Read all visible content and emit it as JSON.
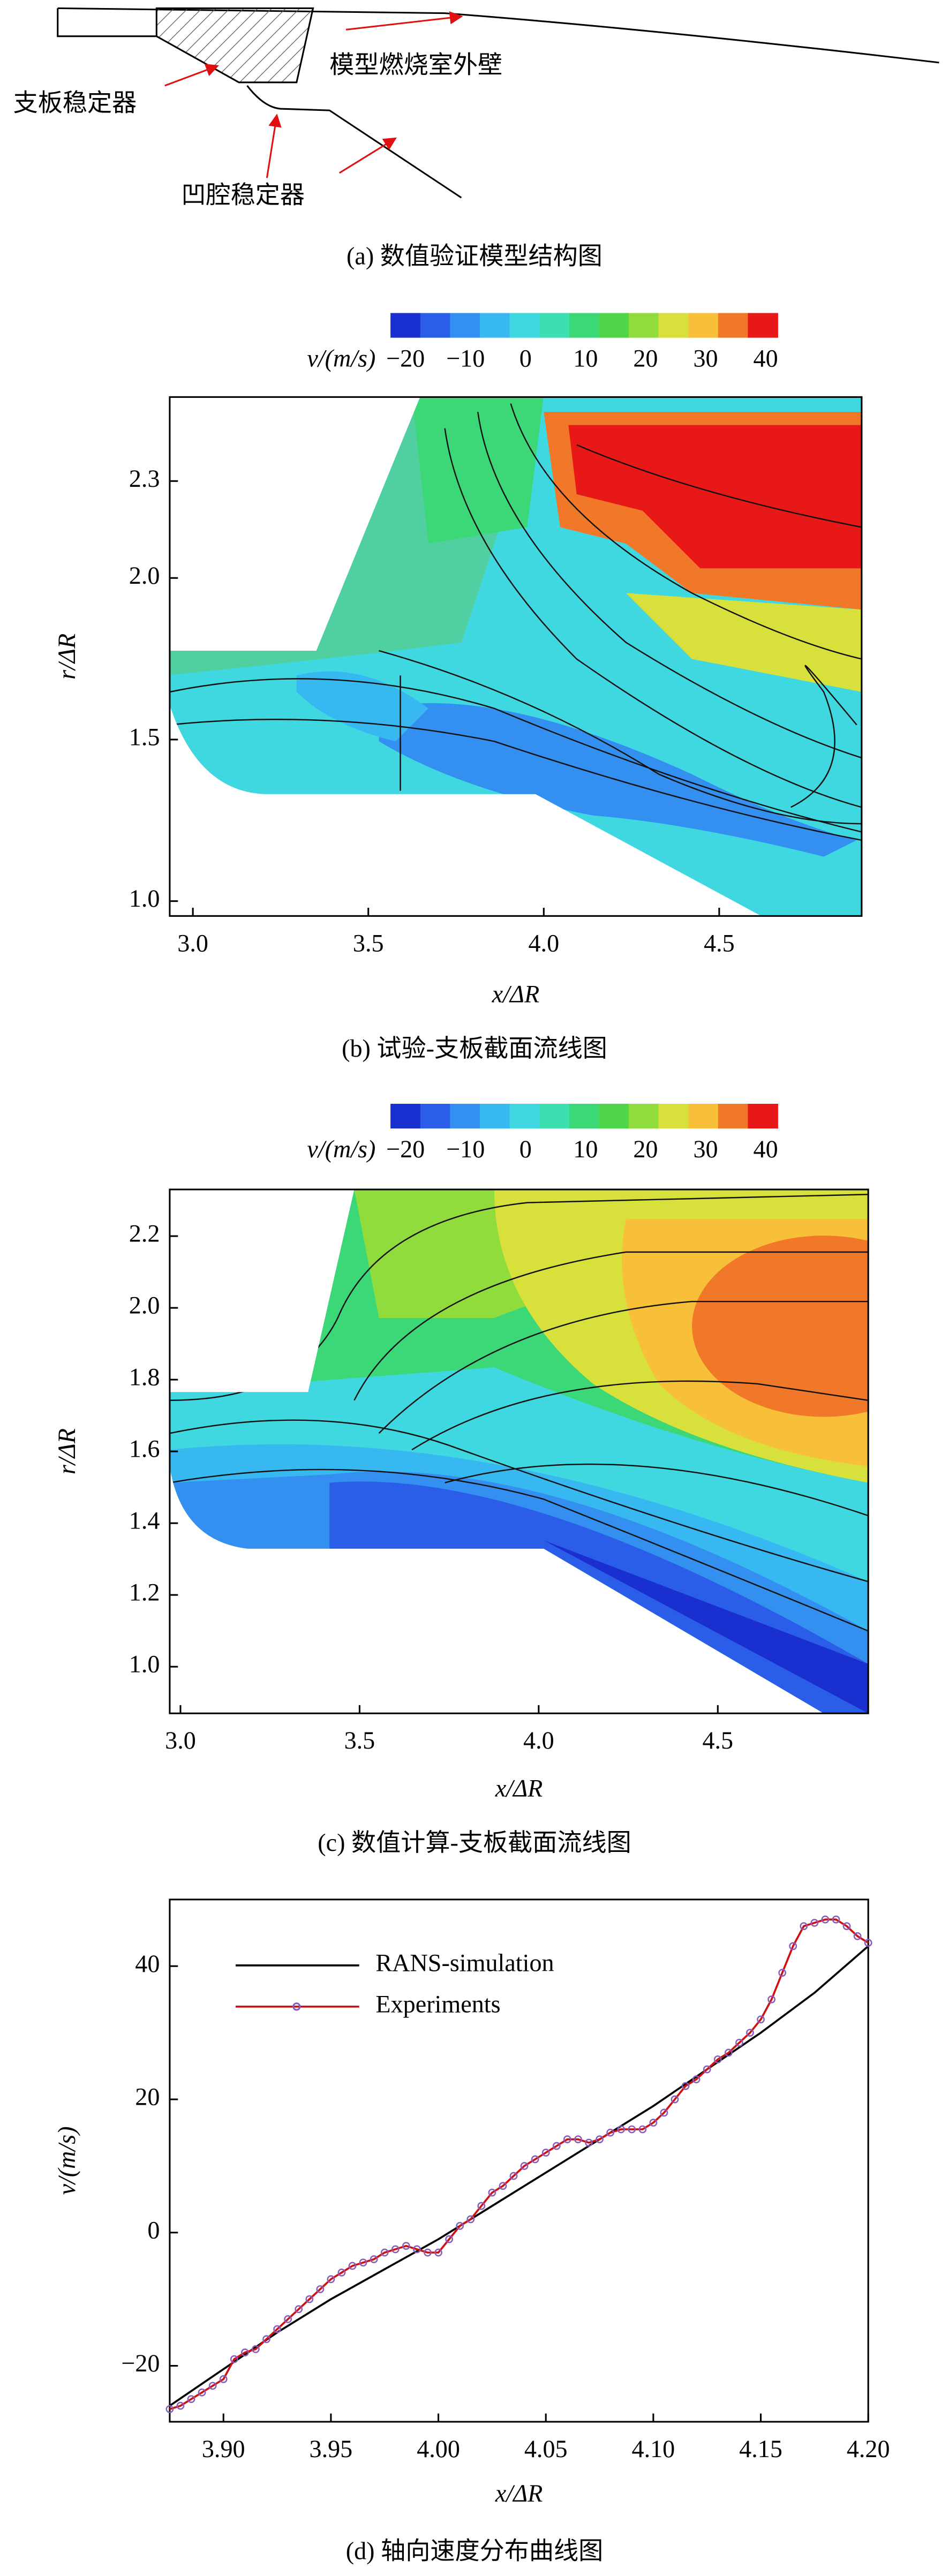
{
  "panel_a": {
    "labels": [
      "模型燃烧室外壁",
      "支板稳定器",
      "凹腔稳定器"
    ],
    "caption": "(a) 数值验证模型结构图"
  },
  "chart_data": [
    {
      "type": "contour",
      "caption": "(b) 试验-支板截面流线图",
      "colorbar_label": "v/(m/s)",
      "clim": [
        -22.5,
        42
      ],
      "colors": [
        "#1a2fd0",
        "#2a5ee8",
        "#3390f0",
        "#38b8f0",
        "#40d8e0",
        "#3ce0b0",
        "#3cd878",
        "#50d448",
        "#90dc3c",
        "#d8e03c",
        "#f8c038",
        "#f07828",
        "#e81818"
      ],
      "cticks": [
        {
          "value": -20,
          "label": "−20"
        },
        {
          "value": -10,
          "label": "−10"
        },
        0,
        10,
        20,
        30,
        40
      ],
      "xlabel": "x/ΔR",
      "ylabel": "r/ΔR",
      "xlim": [
        2.934,
        4.906
      ],
      "ylim": [
        0.954,
        2.56
      ],
      "xticks": [
        {
          "value": 3,
          "label": "3.0"
        },
        3.5,
        {
          "value": 4,
          "label": "4.0"
        },
        4.5
      ],
      "yticks": [
        {
          "value": 1,
          "label": "1.0"
        },
        1.5,
        {
          "value": 2,
          "label": "2.0"
        },
        2.3
      ]
    },
    {
      "type": "contour",
      "caption": "(c) 数值计算-支板截面流线图",
      "colorbar_label": "v/(m/s)",
      "clim": [
        -22.5,
        42
      ],
      "colors": [
        "#1a2fd0",
        "#2a5ee8",
        "#3390f0",
        "#38b8f0",
        "#40d8e0",
        "#3ce0b0",
        "#3cd878",
        "#50d448",
        "#90dc3c",
        "#d8e03c",
        "#f8c038",
        "#f07828",
        "#e81818"
      ],
      "cticks": [
        {
          "value": -20,
          "label": "−20"
        },
        {
          "value": -10,
          "label": "−10"
        },
        0,
        10,
        20,
        30,
        40
      ],
      "xlabel": "x/ΔR",
      "ylabel": "r/ΔR",
      "xlim": [
        2.97,
        4.92
      ],
      "ylim": [
        0.87,
        2.33
      ],
      "xticks": [
        {
          "value": 3,
          "label": "3.0"
        },
        3.5,
        {
          "value": 4,
          "label": "4.0"
        },
        4.5
      ],
      "yticks": [
        {
          "value": 1,
          "label": "1.0"
        },
        1.2,
        1.4,
        1.6,
        1.8,
        {
          "value": 2,
          "label": "2.0"
        },
        2.2
      ]
    },
    {
      "type": "line",
      "caption": "(d) 轴向速度分布曲线图",
      "xlabel": "x/ΔR",
      "ylabel": "v/(m/s)",
      "legend": "upper left",
      "xlim": [
        3.875,
        4.2
      ],
      "ylim": [
        -28.4,
        50
      ],
      "xticks": [
        {
          "value": 3.9,
          "label": "3.90"
        },
        3.95,
        {
          "value": 4,
          "label": "4.00"
        },
        4.05,
        {
          "value": 4.1,
          "label": "4.10"
        },
        4.15,
        {
          "value": 4.2,
          "label": "4.20"
        }
      ],
      "yticks": [
        {
          "value": -20,
          "label": "−20"
        },
        0,
        20,
        40
      ],
      "series": [
        {
          "name": "RANS-simulation",
          "color": "#000000",
          "x": [
            3.875,
            3.9,
            3.925,
            3.95,
            3.975,
            4.0,
            4.025,
            4.05,
            4.075,
            4.1,
            4.125,
            4.15,
            4.175,
            4.2
          ],
          "values": [
            -26,
            -20.5,
            -15,
            -10,
            -5.5,
            -1,
            4,
            9,
            14,
            19,
            24.5,
            30,
            36,
            43
          ]
        },
        {
          "name": "Experiments",
          "color": "#d01010",
          "marker_color": "#8a5ab8",
          "x": [
            3.875,
            3.88,
            3.885,
            3.89,
            3.895,
            3.9,
            3.905,
            3.91,
            3.915,
            3.92,
            3.925,
            3.93,
            3.935,
            3.94,
            3.945,
            3.95,
            3.955,
            3.96,
            3.965,
            3.97,
            3.975,
            3.98,
            3.985,
            3.99,
            3.995,
            4.0,
            4.005,
            4.01,
            4.015,
            4.02,
            4.025,
            4.03,
            4.035,
            4.04,
            4.045,
            4.05,
            4.055,
            4.06,
            4.065,
            4.07,
            4.075,
            4.08,
            4.085,
            4.09,
            4.095,
            4.1,
            4.105,
            4.11,
            4.115,
            4.12,
            4.125,
            4.13,
            4.135,
            4.14,
            4.145,
            4.15,
            4.155,
            4.16,
            4.165,
            4.17,
            4.175,
            4.18,
            4.185,
            4.19,
            4.195,
            4.2
          ],
          "values": [
            -26.5,
            -26,
            -25,
            -24,
            -23,
            -22,
            -19,
            -18,
            -17.5,
            -16,
            -14.5,
            -13,
            -11.5,
            -10,
            -8.5,
            -7,
            -6,
            -5,
            -4.5,
            -4,
            -3,
            -2.5,
            -2,
            -2.5,
            -3,
            -3,
            -1,
            1,
            2,
            4,
            6,
            7,
            8.5,
            10,
            11,
            12,
            13,
            14,
            14,
            13.5,
            14,
            15,
            15.5,
            15.5,
            15.5,
            16.5,
            18,
            20,
            22,
            23,
            24.5,
            26,
            27,
            28.5,
            30,
            32,
            35,
            39,
            43,
            46,
            46.5,
            47,
            47,
            46,
            44.5,
            43.5
          ]
        }
      ]
    }
  ]
}
